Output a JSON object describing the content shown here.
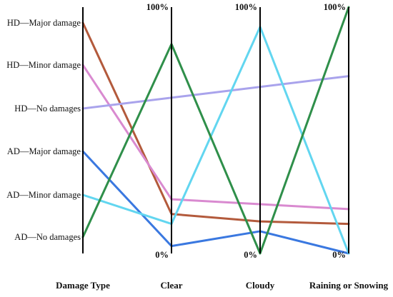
{
  "chart_data": {
    "type": "parallel_coordinates",
    "axes": [
      {
        "name": "Damage Type",
        "kind": "categorical",
        "categories": [
          "HD—Major damage",
          "HD—Minor damage",
          "HD—No damages",
          "AD—Major damage",
          "AD—Minor damage",
          "AD—No damages"
        ]
      },
      {
        "name": "Clear",
        "kind": "percent",
        "top_label": "",
        "bottom_label": "0%",
        "range": [
          0,
          100
        ]
      },
      {
        "name": "Cloudy",
        "kind": "percent",
        "top_label": "100%",
        "bottom_label": "0%",
        "range": [
          0,
          100
        ]
      },
      {
        "name": "Raining or Snowing",
        "kind": "percent",
        "top_label": "100%",
        "bottom_label": "0%",
        "range": [
          0,
          100
        ]
      }
    ],
    "clear_top_label": "100%",
    "series": [
      {
        "category": "HD—Major damage",
        "color": "#b35a3c",
        "values": [
          16,
          13,
          12
        ]
      },
      {
        "category": "HD—Minor damage",
        "color": "#d98ad0",
        "values": [
          22,
          20,
          18
        ]
      },
      {
        "category": "HD—No damages",
        "color": "#a9a3ec",
        "values": [
          null,
          null,
          72
        ]
      },
      {
        "category": "AD—Major damage",
        "color": "#3a78e0",
        "values": [
          3,
          9,
          0
        ]
      },
      {
        "category": "AD—Minor damage",
        "color": "#62d6f0",
        "values": [
          12,
          92,
          0
        ]
      },
      {
        "category": "AD—No damages",
        "color": "#2f8f4a",
        "values": [
          85,
          0,
          100
        ]
      }
    ],
    "grid": false
  }
}
